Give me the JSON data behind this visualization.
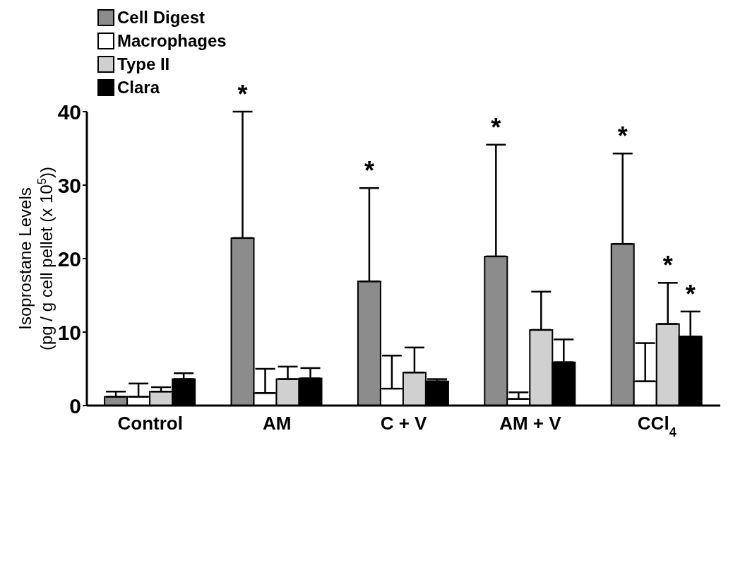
{
  "chart_data": {
    "type": "bar",
    "ylabel": "Isoprostane Levels\n(pg / g cell pellet (x 10$^{5}$))",
    "categories": [
      "Control",
      "AM",
      "C + V",
      "AM + V",
      "CCl$_{4}$"
    ],
    "ylim": [
      0,
      40
    ],
    "yticks": [
      0,
      10,
      20,
      30,
      40
    ],
    "grid": false,
    "legend": "top left",
    "annotations": [
      "*",
      "*",
      "*",
      "*",
      "*",
      "*"
    ],
    "series": [
      {
        "name": "Cell Digest",
        "color": "#8c8c8c",
        "values": [
          1.2,
          22.8,
          16.9,
          20.3,
          22.0
        ],
        "errors": [
          [
            1.2,
            1.9
          ],
          [
            22.8,
            40.0
          ],
          [
            16.9,
            29.6
          ],
          [
            20.3,
            35.5
          ],
          [
            22.0,
            34.3
          ]
        ]
      },
      {
        "name": "Macrophages",
        "color": "#ffffff",
        "values": [
          1.2,
          1.7,
          2.3,
          0.9,
          3.3
        ],
        "errors": [
          [
            1.2,
            3.0
          ],
          [
            1.7,
            5.0
          ],
          [
            2.3,
            6.8
          ],
          [
            0.9,
            1.8
          ],
          [
            3.3,
            8.5
          ]
        ]
      },
      {
        "name": "Type II",
        "color": "#d0d0d0",
        "values": [
          1.9,
          3.6,
          4.5,
          10.3,
          11.1
        ],
        "errors": [
          [
            1.9,
            2.5
          ],
          [
            3.6,
            5.3
          ],
          [
            4.5,
            7.9
          ],
          [
            10.3,
            15.5
          ],
          [
            11.1,
            16.7
          ]
        ]
      },
      {
        "name": "Clara",
        "color": "#000000",
        "values": [
          3.6,
          3.7,
          3.3,
          5.9,
          9.4
        ],
        "errors": [
          [
            3.6,
            4.4
          ],
          [
            3.7,
            5.1
          ],
          [
            3.3,
            3.6
          ],
          [
            5.9,
            9.0
          ],
          [
            9.4,
            12.8
          ]
        ]
      }
    ]
  }
}
